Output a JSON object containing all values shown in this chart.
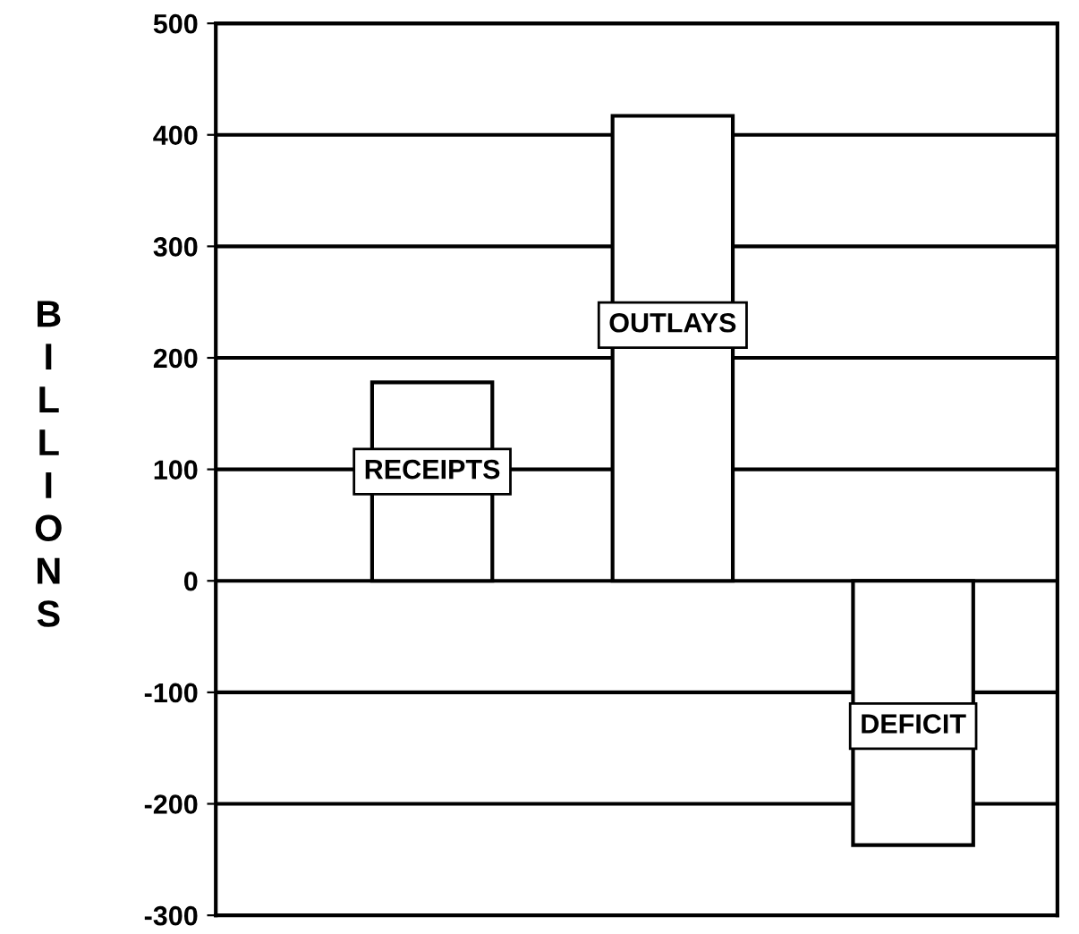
{
  "chart_data": {
    "type": "bar",
    "ylabel": "BILLIONS",
    "categories": [
      "RECEIPTS",
      "OUTLAYS",
      "DEFICIT"
    ],
    "values": [
      178,
      417,
      -237
    ],
    "colors": [
      "#ffffff",
      "#ffffff",
      "#ffffff"
    ],
    "ylim": [
      -300,
      500
    ],
    "yticks": [
      -300,
      -200,
      -100,
      0,
      100,
      200,
      300,
      400,
      500
    ],
    "grid": "y",
    "tick_labels": "y"
  }
}
